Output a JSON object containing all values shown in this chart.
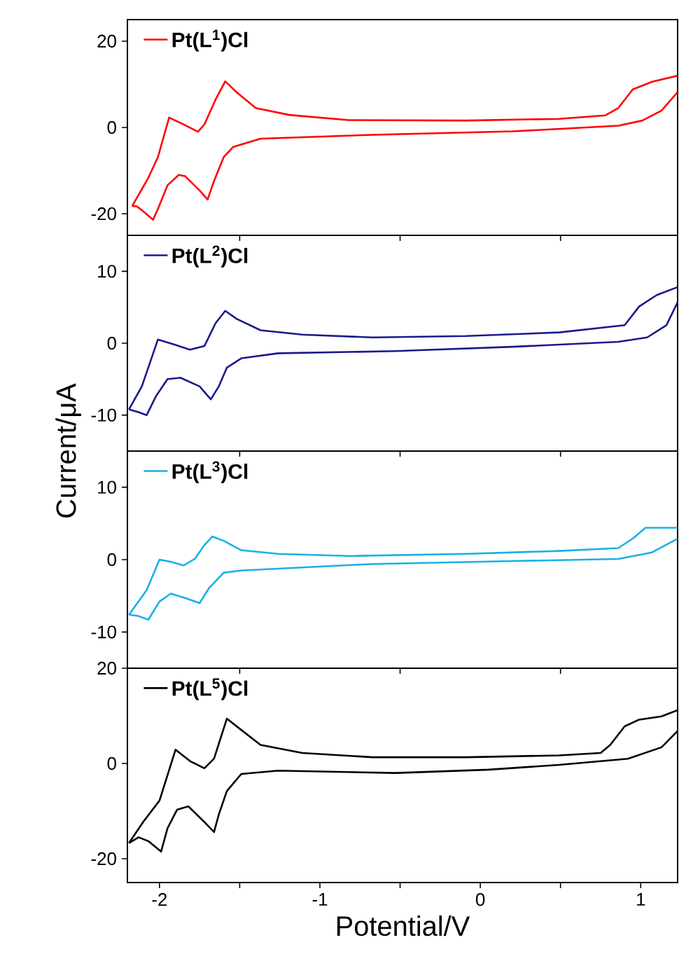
{
  "chart_data": [
    {
      "type": "line",
      "legend": "top left",
      "line_style": "solid",
      "tick_labels": "y",
      "xlim": [
        -2.2,
        1.23
      ],
      "ylim": [
        -25,
        25
      ],
      "yticks": [
        -20,
        0,
        20
      ],
      "xticks": [
        {
          "value": -1.5,
          "label": null
        },
        {
          "value": -0.5,
          "label": null
        },
        {
          "value": 0.5,
          "label": null
        }
      ],
      "series": [
        {
          "name": "Pt(L$^{1}$)Cl",
          "color": "#ff0000",
          "x": [
            -2.17,
            -2.07,
            -2.01,
            -1.94,
            -1.85,
            -1.76,
            -1.72,
            -1.65,
            -1.59,
            -1.52,
            -1.4,
            -1.19,
            -0.82,
            -0.09,
            0.49,
            0.78,
            0.86,
            0.95,
            1.07,
            1.23
          ],
          "values": [
            -18.2,
            -11.7,
            -6.9,
            2.3,
            0.7,
            -1.0,
            0.7,
            6.5,
            10.7,
            8.2,
            4.5,
            2.9,
            1.7,
            1.6,
            2.0,
            2.8,
            4.5,
            8.8,
            10.6,
            12.0
          ]
        },
        {
          "color": "#ff0000",
          "x": [
            1.23,
            1.13,
            1.01,
            0.86,
            0.2,
            -0.67,
            -1.37,
            -1.54,
            -1.6,
            -1.66,
            -1.7,
            -1.75,
            -1.84,
            -1.88,
            -1.95,
            -2.01,
            -2.04,
            -2.1,
            -2.14,
            -2.17
          ],
          "values": [
            8.2,
            3.9,
            1.6,
            0.4,
            -0.9,
            -1.7,
            -2.6,
            -4.5,
            -6.9,
            -12.4,
            -16.7,
            -14.6,
            -11.3,
            -11.0,
            -13.4,
            -18.9,
            -21.4,
            -19.5,
            -18.3,
            -18.2
          ]
        }
      ]
    },
    {
      "type": "line",
      "legend": "top left",
      "line_style": "solid",
      "tick_labels": "y",
      "ylabel": "Current/μA",
      "xlim": [
        -2.2,
        1.23
      ],
      "ylim": [
        -15,
        15
      ],
      "yticks": [
        -10,
        0,
        10
      ],
      "xticks": [
        {
          "value": -1.5,
          "label": null
        },
        {
          "value": -0.5,
          "label": null
        },
        {
          "value": 0.5,
          "label": null
        }
      ],
      "series": [
        {
          "name": "Pt(L$^{2}$)Cl",
          "color": "#1a1a8c",
          "x": [
            -2.19,
            -2.11,
            -2.01,
            -1.92,
            -1.81,
            -1.72,
            -1.65,
            -1.59,
            -1.52,
            -1.37,
            -1.11,
            -0.67,
            -0.09,
            0.49,
            0.9,
            0.99,
            1.1,
            1.23
          ],
          "values": [
            -9.2,
            -6.0,
            0.5,
            -0.1,
            -0.9,
            -0.4,
            2.8,
            4.5,
            3.4,
            1.8,
            1.2,
            0.8,
            1.0,
            1.5,
            2.5,
            5.1,
            6.7,
            7.8
          ]
        },
        {
          "color": "#1a1a8c",
          "x": [
            1.23,
            1.16,
            1.04,
            0.86,
            0.2,
            -0.53,
            -1.26,
            -1.49,
            -1.58,
            -1.63,
            -1.68,
            -1.75,
            -1.87,
            -1.95,
            -2.02,
            -2.08,
            -2.13,
            -2.19
          ],
          "values": [
            5.7,
            2.5,
            0.8,
            0.2,
            -0.5,
            -1.1,
            -1.4,
            -2.1,
            -3.4,
            -6.0,
            -7.8,
            -6.0,
            -4.8,
            -5.0,
            -7.3,
            -10.0,
            -9.6,
            -9.2
          ]
        }
      ]
    },
    {
      "type": "line",
      "legend": "top left",
      "line_style": "solid",
      "tick_labels": "y",
      "xlim": [
        -2.2,
        1.23
      ],
      "ylim": [
        -15,
        15
      ],
      "yticks": [
        -10,
        0,
        10
      ],
      "xticks": [
        {
          "value": -1.5,
          "label": null
        },
        {
          "value": -0.5,
          "label": null
        },
        {
          "value": 0.5,
          "label": null
        }
      ],
      "series": [
        {
          "name": "Pt(L$^{3}$)Cl",
          "color": "#1ab0e8",
          "x": [
            -2.19,
            -2.08,
            -2.0,
            -1.93,
            -1.85,
            -1.78,
            -1.72,
            -1.67,
            -1.6,
            -1.49,
            -1.26,
            -0.82,
            -0.09,
            0.49,
            0.86,
            0.95,
            1.03,
            1.23
          ],
          "values": [
            -7.6,
            -4.2,
            0.0,
            -0.3,
            -0.8,
            0.1,
            2.0,
            3.2,
            2.6,
            1.3,
            0.8,
            0.5,
            0.8,
            1.2,
            1.6,
            2.9,
            4.4,
            4.4
          ]
        },
        {
          "color": "#1ab0e8",
          "x": [
            1.23,
            1.07,
            0.86,
            0.2,
            -0.67,
            -1.49,
            -1.6,
            -1.69,
            -1.75,
            -1.84,
            -1.93,
            -2.0,
            -2.07,
            -2.13,
            -2.19
          ],
          "values": [
            2.9,
            1.0,
            0.1,
            -0.2,
            -0.6,
            -1.5,
            -1.8,
            -3.9,
            -6.0,
            -5.3,
            -4.7,
            -5.8,
            -8.3,
            -7.8,
            -7.6
          ]
        }
      ]
    },
    {
      "type": "line",
      "legend": "top left",
      "line_style": "solid",
      "xlabel": "Potential/V",
      "xlim": [
        -2.2,
        1.23
      ],
      "ylim": [
        -25,
        20
      ],
      "yticks": [
        -20,
        0,
        20
      ],
      "xticks": [
        -2,
        {
          "value": -1.5,
          "label": null
        },
        -1,
        {
          "value": -0.5,
          "label": null
        },
        0,
        {
          "value": 0.5,
          "label": null
        },
        1
      ],
      "series": [
        {
          "name": "Pt(L$^{5}$)Cl",
          "color": "#000000",
          "x": [
            -2.19,
            -2.1,
            -2.0,
            -1.9,
            -1.81,
            -1.72,
            -1.66,
            -1.58,
            -1.5,
            -1.37,
            -1.11,
            -0.67,
            -0.09,
            0.49,
            0.75,
            0.81,
            0.9,
            0.99,
            1.13,
            1.23
          ],
          "values": [
            -16.7,
            -12.2,
            -7.8,
            2.9,
            0.5,
            -1.0,
            1.0,
            9.4,
            7.3,
            3.9,
            2.2,
            1.3,
            1.3,
            1.7,
            2.2,
            3.9,
            7.8,
            9.2,
            9.9,
            11.2
          ]
        },
        {
          "color": "#000000",
          "x": [
            1.23,
            1.13,
            0.92,
            0.49,
            0.05,
            -0.53,
            -1.26,
            -1.49,
            -1.58,
            -1.63,
            -1.66,
            -1.72,
            -1.82,
            -1.89,
            -1.95,
            -1.99,
            -2.07,
            -2.13,
            -2.19
          ],
          "values": [
            6.8,
            3.4,
            1.0,
            -0.3,
            -1.3,
            -2.0,
            -1.5,
            -2.2,
            -5.8,
            -10.7,
            -14.4,
            -12.3,
            -9.0,
            -9.7,
            -13.6,
            -18.5,
            -16.3,
            -15.5,
            -16.7
          ]
        }
      ]
    }
  ]
}
